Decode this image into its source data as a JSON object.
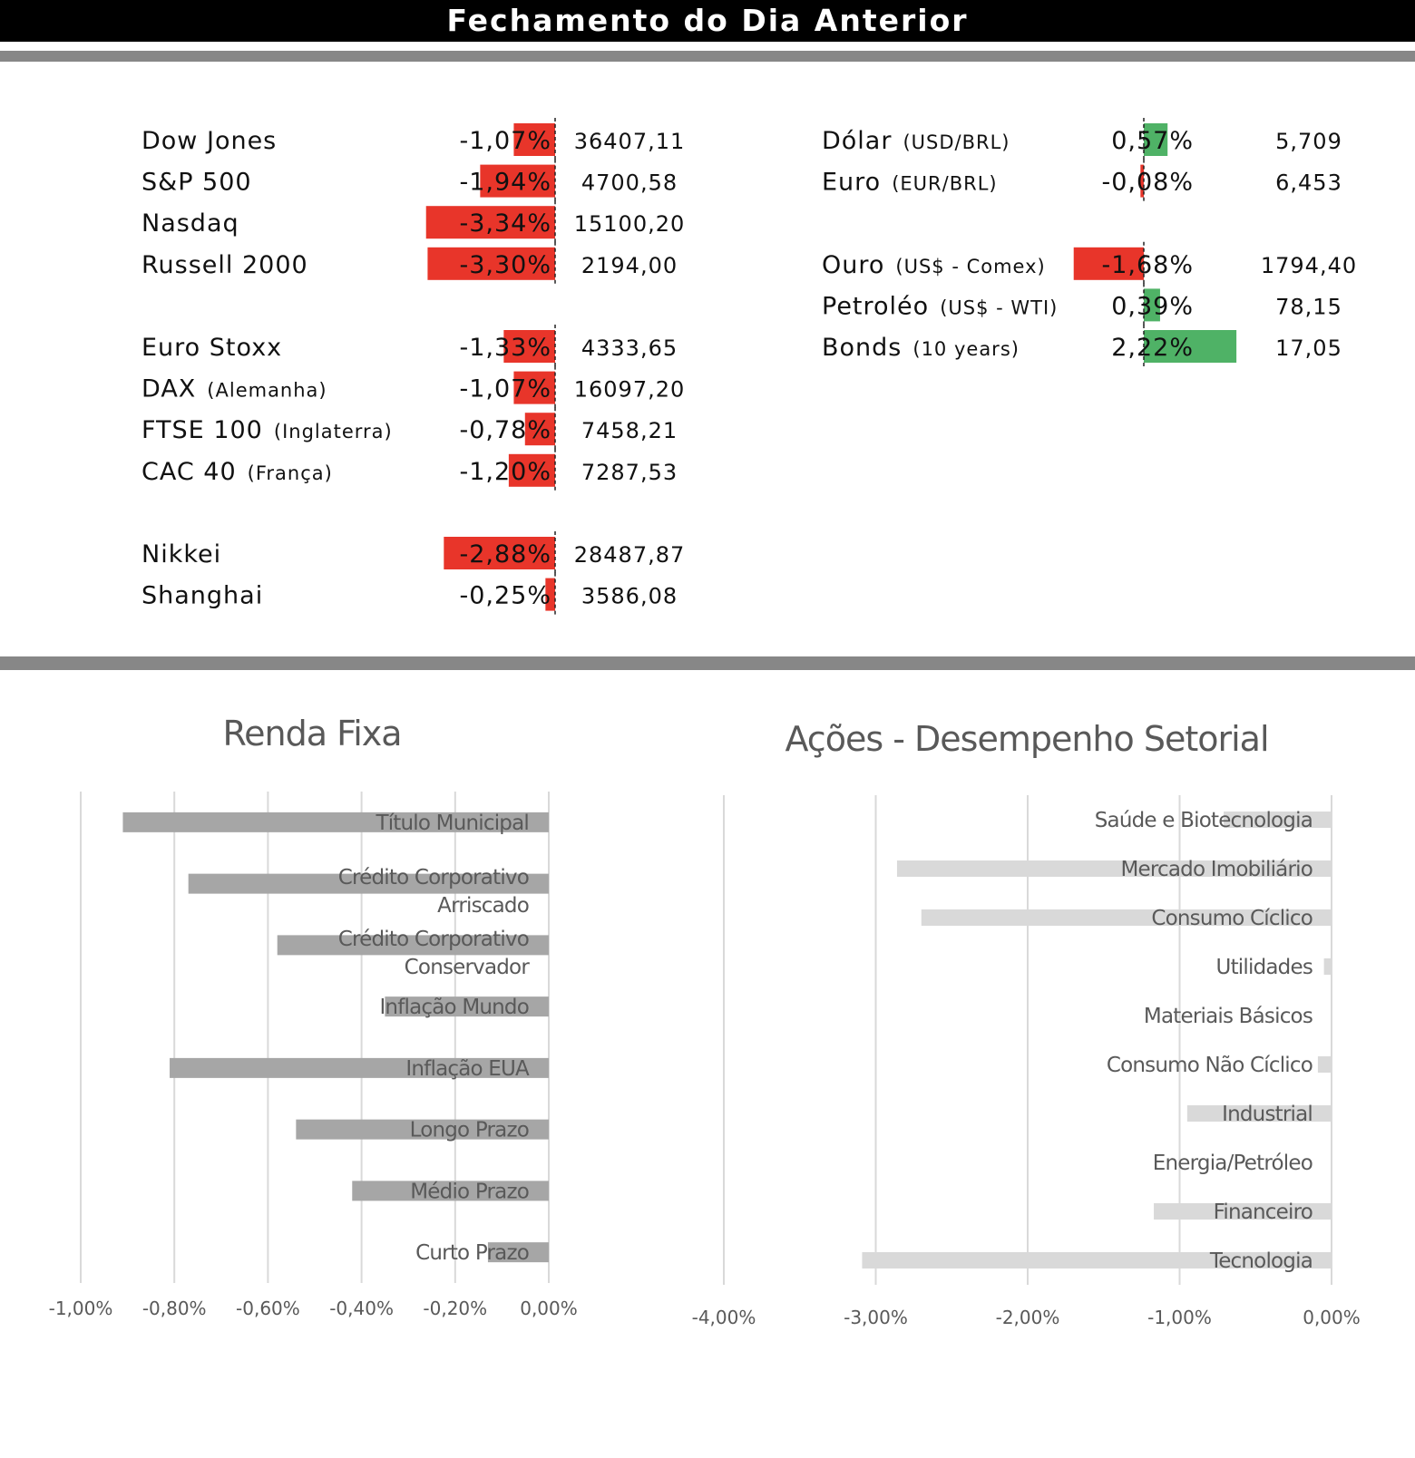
{
  "header": {
    "title": "Fechamento do Dia Anterior"
  },
  "colors": {
    "negative": "#e8352a",
    "positive": "#4fb266",
    "renda_bar": "#a6a6a6",
    "acoes_bar": "#d9d9d9",
    "grid": "#d9d9d9",
    "separator": "#878787"
  },
  "chart_data": [
    {
      "type": "table",
      "groups": [
        {
          "rows": [
            {
              "name": "Dow Jones",
              "detail": "",
              "change_pct": -1.07,
              "change_label": "-1,07%",
              "close": "36407,11"
            },
            {
              "name": "S&P 500",
              "detail": "",
              "change_pct": -1.94,
              "change_label": "-1,94%",
              "close": "4700,58"
            },
            {
              "name": "Nasdaq",
              "detail": "",
              "change_pct": -3.34,
              "change_label": "-3,34%",
              "close": "15100,20"
            },
            {
              "name": "Russell 2000",
              "detail": "",
              "change_pct": -3.3,
              "change_label": "-3,30%",
              "close": "2194,00"
            }
          ]
        },
        {
          "rows": [
            {
              "name": "Euro Stoxx",
              "detail": "",
              "change_pct": -1.33,
              "change_label": "-1,33%",
              "close": "4333,65"
            },
            {
              "name": "DAX",
              "detail": "(Alemanha)",
              "change_pct": -1.07,
              "change_label": "-1,07%",
              "close": "16097,20"
            },
            {
              "name": "FTSE 100",
              "detail": "(Inglaterra)",
              "change_pct": -0.78,
              "change_label": "-0,78%",
              "close": "7458,21"
            },
            {
              "name": "CAC 40",
              "detail": "(França)",
              "change_pct": -1.2,
              "change_label": "-1,20%",
              "close": "7287,53"
            }
          ]
        },
        {
          "rows": [
            {
              "name": "Nikkei",
              "detail": "",
              "change_pct": -2.88,
              "change_label": "-2,88%",
              "close": "28487,87"
            },
            {
              "name": "Shanghai",
              "detail": "",
              "change_pct": -0.25,
              "change_label": "-0,25%",
              "close": "3586,08"
            }
          ]
        }
      ]
    },
    {
      "type": "table",
      "groups": [
        {
          "rows": [
            {
              "name": "Dólar",
              "detail": "(USD/BRL)",
              "change_pct": 0.57,
              "change_label": "0,57%",
              "close": "5,709"
            },
            {
              "name": "Euro",
              "detail": "(EUR/BRL)",
              "change_pct": -0.08,
              "change_label": "-0,08%",
              "close": "6,453"
            }
          ]
        },
        {
          "rows": [
            {
              "name": "Ouro",
              "detail": "(US$ - Comex)",
              "change_pct": -1.68,
              "change_label": "-1,68%",
              "close": "1794,40"
            },
            {
              "name": "Petroléo",
              "detail": "(US$ - WTI)",
              "change_pct": 0.39,
              "change_label": "0,39%",
              "close": "78,15"
            },
            {
              "name": "Bonds",
              "detail": "(10 years)",
              "change_pct": 2.22,
              "change_label": "2,22%",
              "close": "17,05"
            }
          ]
        }
      ]
    },
    {
      "type": "bar",
      "orientation": "horizontal",
      "title": "Renda Fixa",
      "categories": [
        "Título Municipal",
        "Crédito Corporativo Arriscado",
        "Crédito Corporativo Conservador",
        "Inflação Mundo",
        "Inflação EUA",
        "Longo Prazo",
        "Médio Prazo",
        "Curto Prazo"
      ],
      "category_lines": [
        [
          "Título Municipal"
        ],
        [
          "Crédito Corporativo",
          "Arriscado"
        ],
        [
          "Crédito Corporativo",
          "Conservador"
        ],
        [
          "Inflação Mundo"
        ],
        [
          "Inflação EUA"
        ],
        [
          "Longo Prazo"
        ],
        [
          "Médio Prazo"
        ],
        [
          "Curto Prazo"
        ]
      ],
      "values": [
        -0.91,
        -0.77,
        -0.58,
        -0.35,
        -0.81,
        -0.54,
        -0.42,
        -0.13
      ],
      "xlim": [
        -1.0,
        0.0
      ],
      "xticks": [
        -1.0,
        -0.8,
        -0.6,
        -0.4,
        -0.2,
        0.0
      ],
      "xtick_labels": [
        "-1,00%",
        "-0,80%",
        "-0,60%",
        "-0,40%",
        "-0,20%",
        "0,00%"
      ],
      "grid": true
    },
    {
      "type": "bar",
      "orientation": "horizontal",
      "title": "Ações - Desempenho Setorial",
      "categories": [
        "Saúde e Biotecnologia",
        "Mercado Imobiliário",
        "Consumo Cíclico",
        "Utilidades",
        "Materiais Básicos",
        "Consumo Não Cíclico",
        "Industrial",
        "Energia/Petróleo",
        "Financeiro",
        "Tecnologia"
      ],
      "values": [
        -0.71,
        -2.86,
        -2.7,
        -0.05,
        0.0,
        -0.09,
        -0.95,
        0.0,
        -1.17,
        -3.09
      ],
      "xlim": [
        -4.0,
        0.0
      ],
      "xticks": [
        -4.0,
        -3.0,
        -2.0,
        -1.0,
        0.0
      ],
      "xtick_labels": [
        "-4,00%",
        "-3,00%",
        "-2,00%",
        "-1,00%",
        "0,00%"
      ],
      "grid": true
    }
  ]
}
